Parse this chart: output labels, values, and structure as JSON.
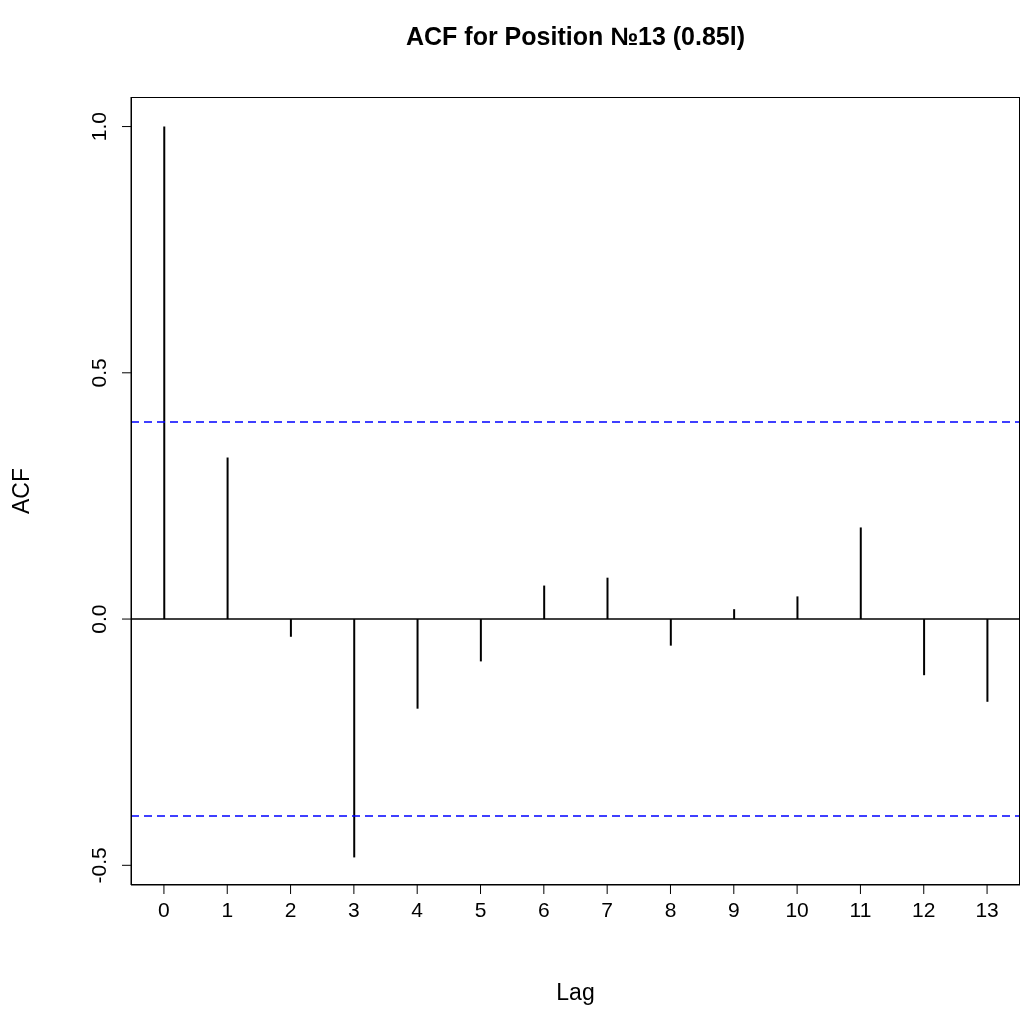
{
  "chart_data": {
    "type": "bar",
    "title": "ACF for Position №13 (0.85l)",
    "xlabel": "Lag",
    "ylabel": "ACF",
    "x": [
      0,
      1,
      2,
      3,
      4,
      5,
      6,
      7,
      8,
      9,
      10,
      11,
      12,
      13
    ],
    "series": [
      {
        "color": "#000000",
        "values": [
          1.0,
          0.328,
          -0.036,
          -0.484,
          -0.182,
          -0.086,
          0.068,
          0.084,
          -0.054,
          0.02,
          0.046,
          0.186,
          -0.114,
          -0.168
        ]
      }
    ],
    "xlim": [
      -0.52,
      13.52
    ],
    "xticks": [
      0,
      1,
      2,
      3,
      4,
      5,
      6,
      7,
      8,
      9,
      10,
      11,
      12,
      13
    ],
    "ylim": [
      -0.54,
      1.06
    ],
    "yticks": [
      {
        "value": -0.5,
        "label": "-0.5"
      },
      {
        "value": 0,
        "label": "0.0"
      },
      {
        "value": 0.5,
        "label": "0.5"
      },
      {
        "value": 1,
        "label": "1.0"
      }
    ],
    "ref_lines": [
      {
        "axis": "y",
        "value": 0,
        "color": "#000000",
        "line_style": "solid"
      },
      {
        "axis": "y",
        "value": 0.4,
        "color": "#0000ff",
        "line_style": "dashed"
      },
      {
        "axis": "y",
        "value": -0.4,
        "color": "#0000ff",
        "line_style": "dashed"
      }
    ],
    "grid": false,
    "legend": false
  }
}
